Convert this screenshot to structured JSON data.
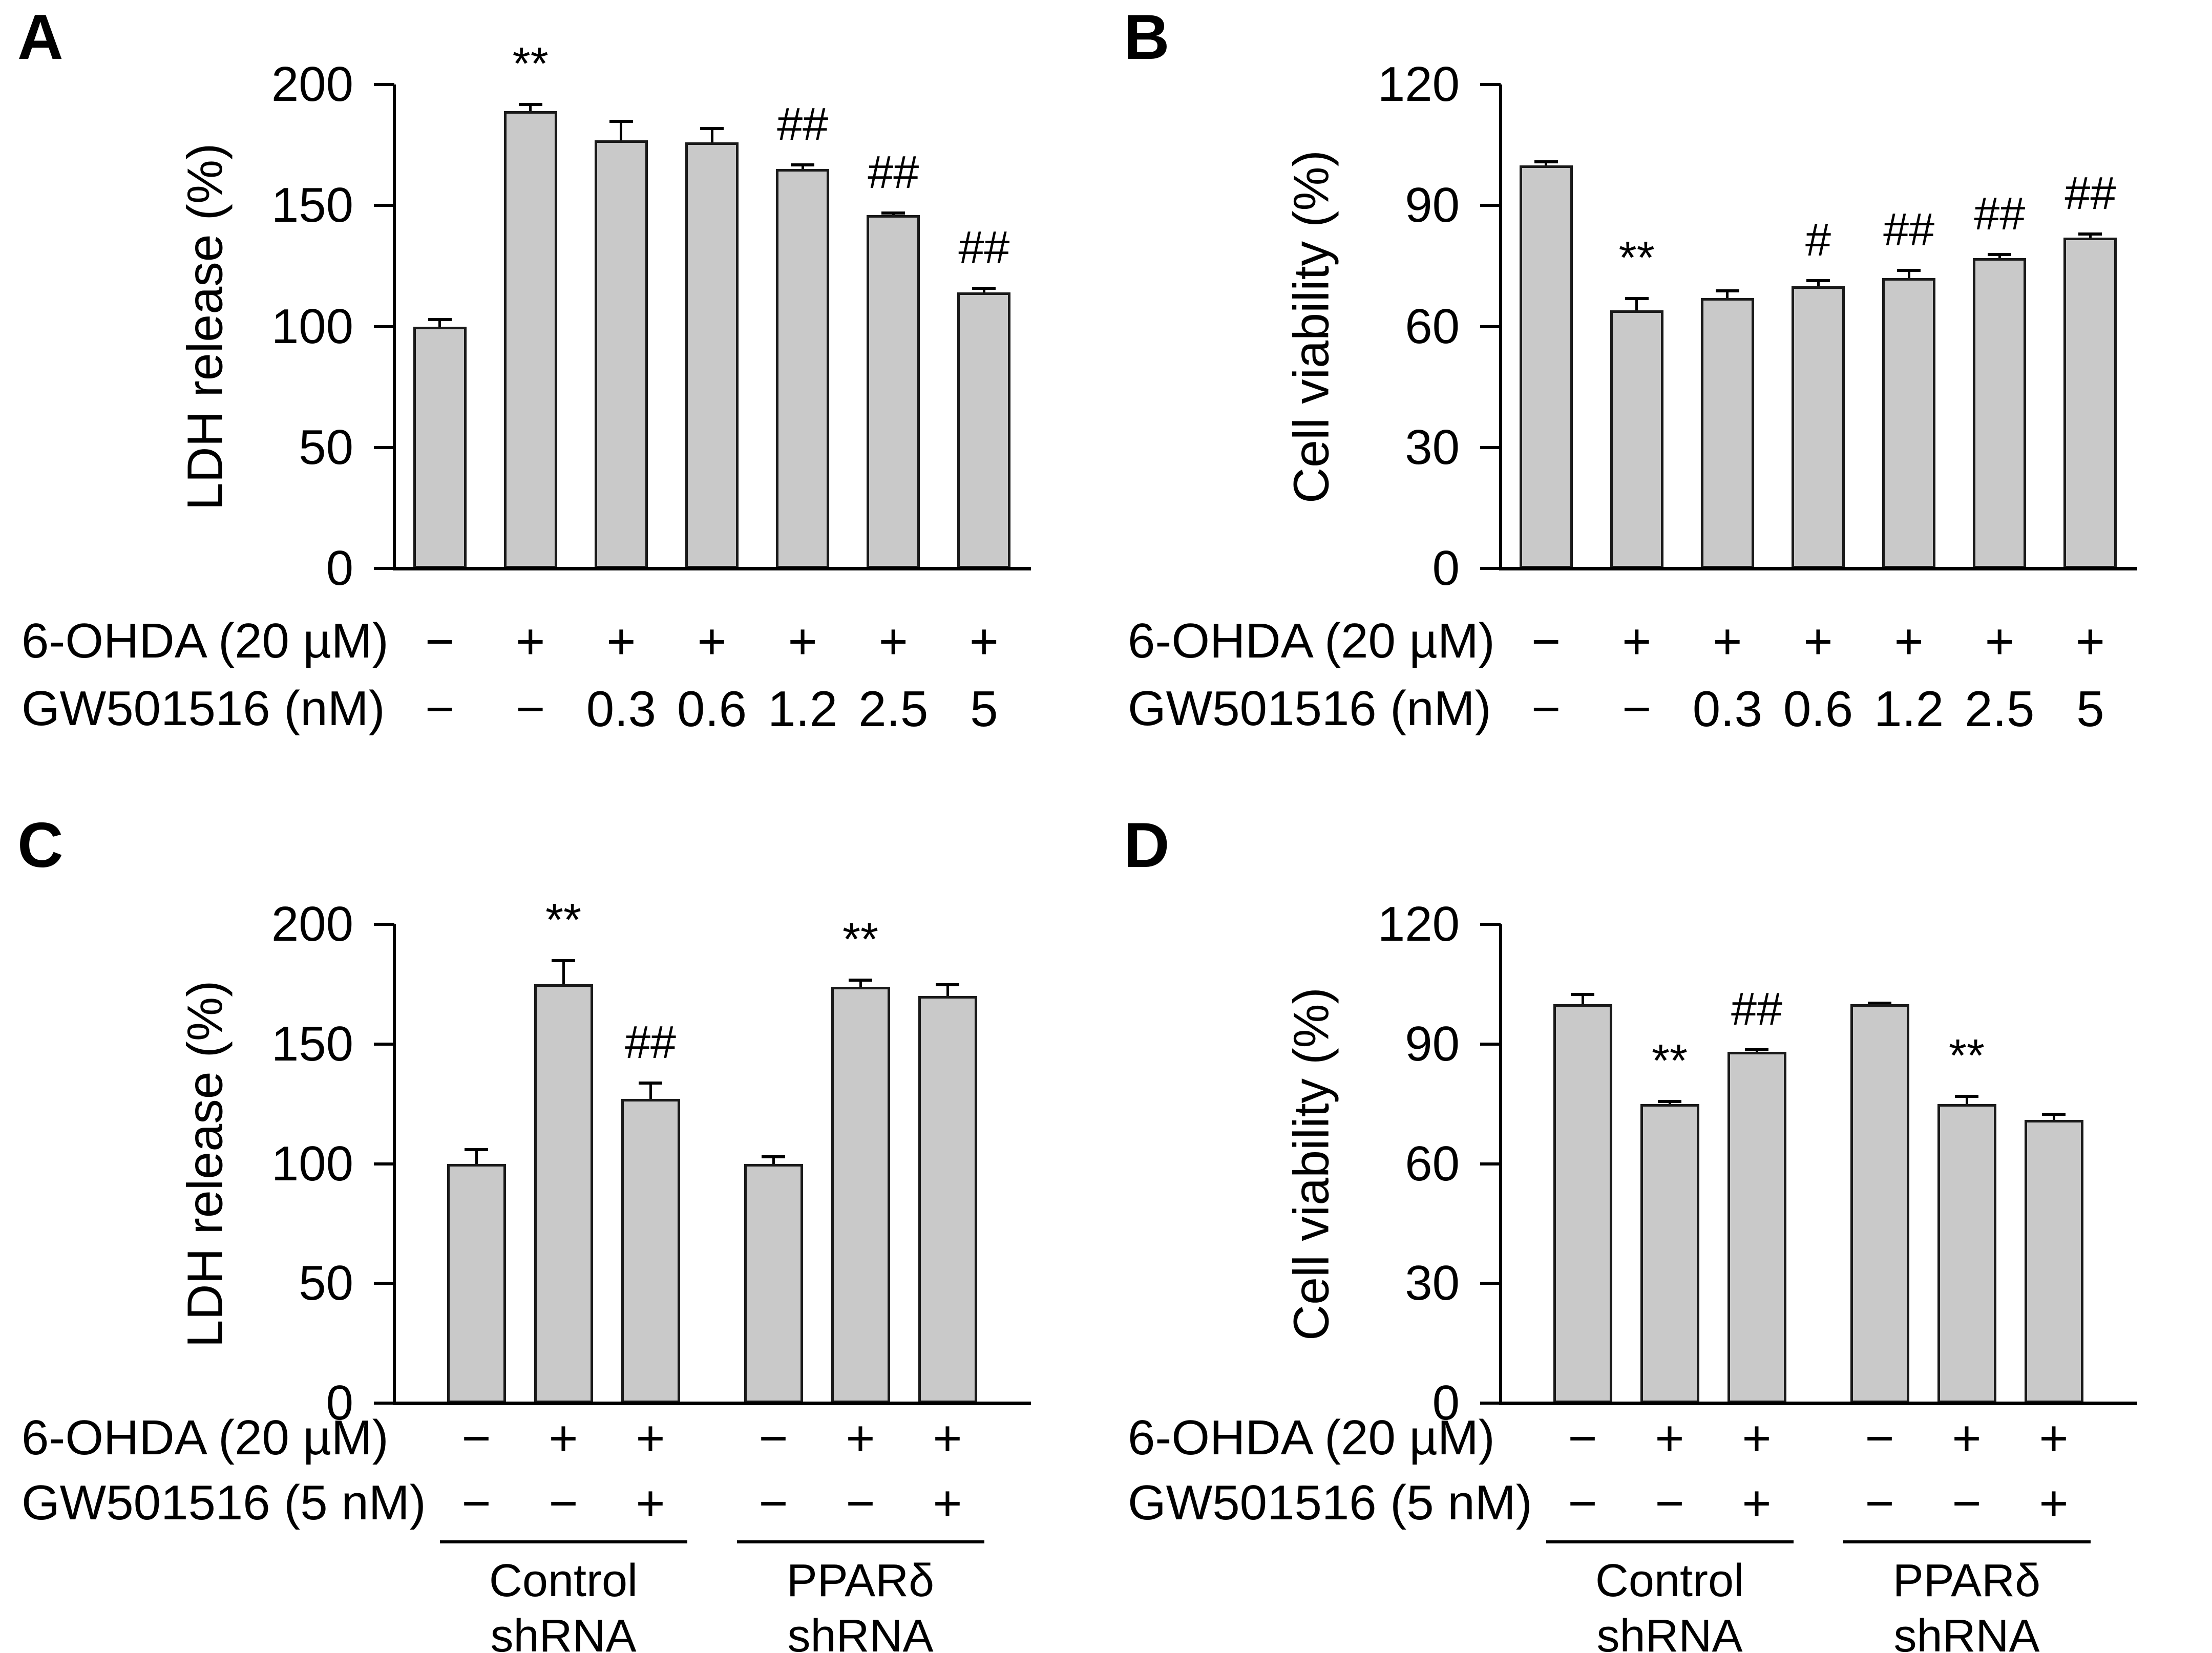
{
  "figure": {
    "background": "#ffffff",
    "bar_fill": "#c9c9c9",
    "bar_border": "#1a1a1a",
    "axis_color": "#000000",
    "text_color": "#000000"
  },
  "chart_data": [
    {
      "panel": "A",
      "type": "bar",
      "title": "",
      "ylabel": "LDH release (%)",
      "ylim": [
        0,
        200
      ],
      "yticks": [
        200,
        150,
        100,
        50,
        0
      ],
      "grid": false,
      "values": [
        100,
        189,
        177,
        176,
        165,
        146,
        114
      ],
      "errors": [
        3,
        3,
        8,
        6,
        2,
        1,
        2
      ],
      "sig_labels": [
        "",
        "**",
        "",
        "",
        "##",
        "##",
        "##"
      ],
      "condition_rows": [
        {
          "label": "6-OHDA (20 µM)",
          "cells": [
            "−",
            "+",
            "+",
            "+",
            "+",
            "+",
            "+"
          ]
        },
        {
          "label": "GW501516 (nM)",
          "cells": [
            "−",
            "−",
            "0.3",
            "0.6",
            "1.2",
            "2.5",
            "5"
          ]
        }
      ],
      "groups": []
    },
    {
      "panel": "B",
      "type": "bar",
      "title": "",
      "ylabel": "Cell viability (%)",
      "ylim": [
        0,
        120
      ],
      "yticks": [
        120,
        90,
        60,
        30,
        0
      ],
      "grid": false,
      "values": [
        100,
        64,
        67,
        70,
        72,
        77,
        82
      ],
      "errors": [
        1,
        3,
        2,
        1.5,
        2,
        1,
        1
      ],
      "sig_labels": [
        "",
        "**",
        "",
        "#",
        "##",
        "##",
        "##"
      ],
      "condition_rows": [
        {
          "label": "6-OHDA (20 µM)",
          "cells": [
            "−",
            "+",
            "+",
            "+",
            "+",
            "+",
            "+"
          ]
        },
        {
          "label": "GW501516 (nM)",
          "cells": [
            "−",
            "−",
            "0.3",
            "0.6",
            "1.2",
            "2.5",
            "5"
          ]
        }
      ],
      "groups": []
    },
    {
      "panel": "C",
      "type": "bar",
      "title": "",
      "ylabel": "LDH release (%)",
      "ylim": [
        0,
        200
      ],
      "yticks": [
        200,
        150,
        100,
        50,
        0
      ],
      "grid": false,
      "values": [
        100,
        175,
        127,
        100,
        174,
        170
      ],
      "errors": [
        6,
        10,
        7,
        3,
        3,
        5
      ],
      "sig_labels": [
        "",
        "**",
        "##",
        "",
        "**",
        ""
      ],
      "condition_rows": [
        {
          "label": "6-OHDA (20 µM)",
          "cells": [
            "−",
            "+",
            "+",
            "−",
            "+",
            "+"
          ]
        },
        {
          "label": "GW501516 (5 nM)",
          "cells": [
            "−",
            "−",
            "+",
            "−",
            "−",
            "+"
          ]
        }
      ],
      "groups": [
        {
          "line1": "Control",
          "line2": "shRNA",
          "from": 0,
          "to": 2
        },
        {
          "line1": "PPARδ",
          "line2": "shRNA",
          "from": 3,
          "to": 5
        }
      ]
    },
    {
      "panel": "D",
      "type": "bar",
      "title": "",
      "ylabel": "Cell viability (%)",
      "ylim": [
        0,
        120
      ],
      "yticks": [
        120,
        90,
        60,
        30,
        0
      ],
      "grid": false,
      "values": [
        100,
        75,
        88,
        100,
        75,
        71
      ],
      "errors": [
        2.5,
        0.7,
        0.7,
        0.4,
        2,
        1.5
      ],
      "sig_labels": [
        "",
        "**",
        "##",
        "",
        "**",
        ""
      ],
      "condition_rows": [
        {
          "label": "6-OHDA (20 µM)",
          "cells": [
            "−",
            "+",
            "+",
            "−",
            "+",
            "+"
          ]
        },
        {
          "label": "GW501516 (5 nM)",
          "cells": [
            "−",
            "−",
            "+",
            "−",
            "−",
            "+"
          ]
        }
      ],
      "groups": [
        {
          "line1": "Control",
          "line2": "shRNA",
          "from": 0,
          "to": 2
        },
        {
          "line1": "PPARδ",
          "line2": "shRNA",
          "from": 3,
          "to": 5
        }
      ]
    }
  ]
}
